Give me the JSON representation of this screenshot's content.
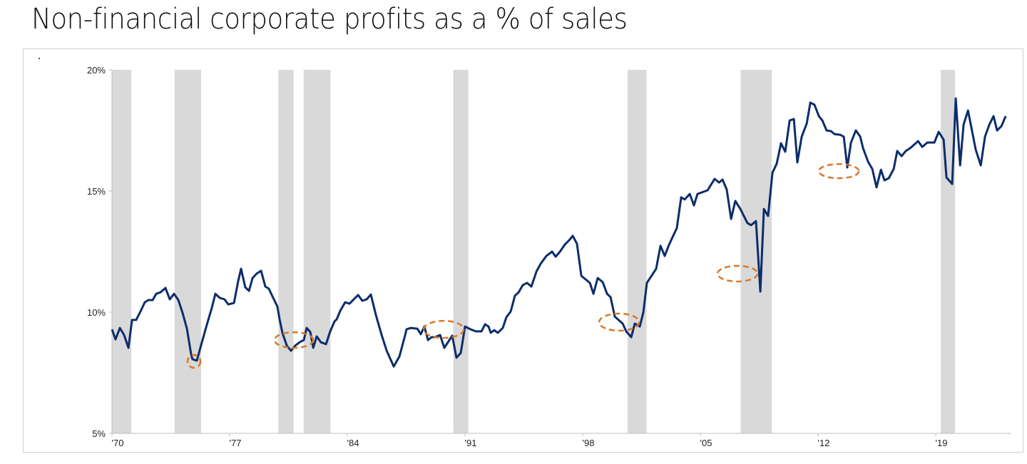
{
  "chart_data": {
    "type": "line",
    "title": "Non-financial corporate profits as a % of sales",
    "xlabel": "",
    "ylabel": "",
    "xlim": [
      1970,
      2023.5
    ],
    "ylim": [
      5,
      20
    ],
    "grid": false,
    "legend": "none",
    "x_ticks": [
      {
        "value": 1970,
        "label": "'70"
      },
      {
        "value": 1977,
        "label": "'77"
      },
      {
        "value": 1984,
        "label": "'84"
      },
      {
        "value": 1991,
        "label": "'91"
      },
      {
        "value": 1998,
        "label": "'98"
      },
      {
        "value": 2005,
        "label": "'05"
      },
      {
        "value": 2012,
        "label": "'12"
      },
      {
        "value": 2019,
        "label": "'19"
      }
    ],
    "y_ticks": [
      {
        "value": 5,
        "label": "5%"
      },
      {
        "value": 10,
        "label": "10%"
      },
      {
        "value": 15,
        "label": "15%"
      },
      {
        "value": 20,
        "label": "20%"
      }
    ],
    "colors": {
      "line": "#0c2d6b",
      "recession": "#d9d9d9",
      "annotation": "#d9792a",
      "axis": "#bfbfbf"
    },
    "recessions": [
      [
        1970.0,
        1971.15
      ],
      [
        1973.73,
        1975.3
      ],
      [
        1979.9,
        1980.8
      ],
      [
        1981.4,
        1983.0
      ],
      [
        1990.3,
        1991.2
      ],
      [
        2000.67,
        2001.8
      ],
      [
        2007.4,
        2009.25
      ],
      [
        2019.3,
        2020.15
      ]
    ],
    "annotations": [
      {
        "x": 1974.88,
        "y": 7.97,
        "shape": "dashed-ellipse"
      },
      {
        "x": 1980.82,
        "y": 8.85,
        "shape": "dashed-ellipse"
      },
      {
        "x": 1989.73,
        "y": 9.29,
        "shape": "dashed-ellipse"
      },
      {
        "x": 2000.17,
        "y": 9.59,
        "shape": "dashed-ellipse"
      },
      {
        "x": 2007.21,
        "y": 11.59,
        "shape": "dashed-ellipse"
      },
      {
        "x": 2013.24,
        "y": 15.82,
        "shape": "dashed-ellipse"
      }
    ],
    "series": [
      {
        "x": [
          1970.0,
          1970.21,
          1970.47,
          1970.72,
          1970.98,
          1971.19,
          1971.44,
          1971.74,
          1971.95,
          1972.16,
          1972.42,
          1972.63,
          1972.89,
          1973.18,
          1973.44,
          1973.69,
          1973.95,
          1974.2,
          1974.46,
          1974.71,
          1974.79,
          1975.05,
          1975.35,
          1975.64,
          1975.94,
          1976.15,
          1976.41,
          1976.7,
          1976.92,
          1977.26,
          1977.51,
          1977.68,
          1977.93,
          1978.15,
          1978.36,
          1978.61,
          1978.87,
          1979.12,
          1979.33,
          1979.59,
          1979.84,
          1979.97,
          1980.14,
          1980.4,
          1980.65,
          1980.9,
          1981.16,
          1981.41,
          1981.58,
          1981.8,
          1981.97,
          1982.18,
          1982.43,
          1982.73,
          1982.98,
          1983.24,
          1983.37,
          1983.58,
          1983.87,
          1984.13,
          1984.38,
          1984.64,
          1984.89,
          1985.15,
          1985.4,
          1985.7,
          1986.04,
          1986.34,
          1986.76,
          1987.1,
          1987.44,
          1987.52,
          1987.78,
          1988.16,
          1988.37,
          1988.58,
          1988.8,
          1989.01,
          1989.22,
          1989.52,
          1989.77,
          1990.24,
          1990.49,
          1990.75,
          1991.0,
          1991.34,
          1991.64,
          1991.98,
          1992.19,
          1992.4,
          1992.53,
          1992.74,
          1992.95,
          1993.25,
          1993.46,
          1993.72,
          1993.97,
          1994.19,
          1994.44,
          1994.69,
          1994.95,
          1995.25,
          1995.5,
          1995.84,
          1996.18,
          1996.39,
          1996.65,
          1996.94,
          1997.2,
          1997.41,
          1997.66,
          1997.92,
          1998.43,
          1998.64,
          1998.89,
          1999.19,
          1999.45,
          1999.66,
          1999.91,
          2000.38,
          2000.59,
          2000.89,
          2001.1,
          2001.4,
          2001.61,
          2001.82,
          2002.37,
          2002.63,
          2002.88,
          2003.14,
          2003.6,
          2003.86,
          2004.07,
          2004.37,
          2004.62,
          2004.83,
          2005.43,
          2005.85,
          2006.11,
          2006.32,
          2006.57,
          2006.83,
          2007.08,
          2007.38,
          2007.59,
          2007.8,
          2008.02,
          2008.31,
          2008.57,
          2008.78,
          2009.03,
          2009.29,
          2009.54,
          2009.8,
          2010.05,
          2010.31,
          2010.56,
          2010.77,
          2011.03,
          2011.33,
          2011.54,
          2011.79,
          2012.05,
          2012.26,
          2012.51,
          2012.77,
          2012.98,
          2013.32,
          2013.53,
          2013.74,
          2013.96,
          2014.25,
          2014.51,
          2014.68,
          2014.98,
          2015.23,
          2015.48,
          2015.74,
          2015.95,
          2016.21,
          2016.5,
          2016.71,
          2016.97,
          2017.22,
          2017.52,
          2017.95,
          2018.2,
          2018.5,
          2018.92,
          2019.18,
          2019.47,
          2019.64,
          2019.98,
          2020.19,
          2020.45,
          2020.66,
          2020.92,
          2021.17,
          2021.38,
          2021.68,
          2021.93,
          2022.19,
          2022.44,
          2022.65,
          2022.91,
          2023.16
        ],
        "y": [
          9.29,
          8.88,
          9.35,
          9.06,
          8.53,
          9.68,
          9.68,
          10.09,
          10.41,
          10.5,
          10.5,
          10.76,
          10.82,
          11.0,
          10.53,
          10.76,
          10.5,
          9.97,
          9.32,
          8.26,
          8.06,
          8.0,
          8.76,
          9.47,
          10.18,
          10.76,
          10.59,
          10.53,
          10.32,
          10.38,
          11.29,
          11.79,
          11.03,
          10.88,
          11.41,
          11.59,
          11.71,
          11.06,
          10.97,
          10.59,
          10.24,
          9.71,
          9.15,
          8.62,
          8.41,
          8.62,
          8.76,
          8.85,
          9.35,
          9.18,
          8.53,
          9.0,
          8.76,
          8.68,
          9.21,
          9.62,
          9.71,
          10.06,
          10.41,
          10.35,
          10.53,
          10.71,
          10.47,
          10.53,
          10.73,
          9.88,
          9.06,
          8.41,
          7.76,
          8.18,
          9.06,
          9.29,
          9.35,
          9.32,
          9.09,
          9.41,
          8.85,
          8.97,
          8.97,
          9.06,
          8.53,
          9.03,
          8.12,
          8.32,
          9.41,
          9.29,
          9.21,
          9.21,
          9.5,
          9.41,
          9.15,
          9.26,
          9.15,
          9.35,
          9.79,
          10.03,
          10.68,
          10.82,
          11.12,
          11.21,
          11.06,
          11.68,
          12.0,
          12.32,
          12.5,
          12.29,
          12.5,
          12.79,
          12.97,
          13.15,
          12.82,
          11.5,
          11.21,
          10.76,
          11.41,
          11.24,
          10.76,
          10.62,
          9.82,
          9.53,
          9.21,
          8.97,
          9.53,
          9.41,
          10.0,
          11.21,
          11.79,
          12.74,
          12.32,
          12.79,
          13.47,
          14.74,
          14.65,
          14.88,
          14.41,
          14.88,
          15.03,
          15.5,
          15.35,
          15.47,
          15.06,
          13.85,
          14.59,
          14.26,
          13.97,
          13.68,
          13.59,
          13.76,
          10.85,
          14.26,
          13.97,
          15.76,
          16.12,
          16.97,
          16.62,
          17.91,
          17.97,
          16.18,
          17.24,
          17.79,
          18.65,
          18.56,
          18.09,
          17.91,
          17.5,
          17.47,
          17.35,
          17.32,
          17.24,
          15.97,
          17.0,
          17.5,
          17.24,
          16.76,
          16.21,
          15.91,
          15.15,
          15.88,
          15.44,
          15.53,
          15.91,
          16.65,
          16.44,
          16.65,
          16.79,
          17.06,
          16.82,
          17.0,
          17.0,
          17.44,
          17.12,
          15.56,
          15.29,
          18.82,
          16.06,
          17.74,
          18.32,
          17.44,
          16.71,
          16.06,
          17.24,
          17.74,
          18.09,
          17.5,
          17.68,
          18.09
        ]
      }
    ]
  }
}
